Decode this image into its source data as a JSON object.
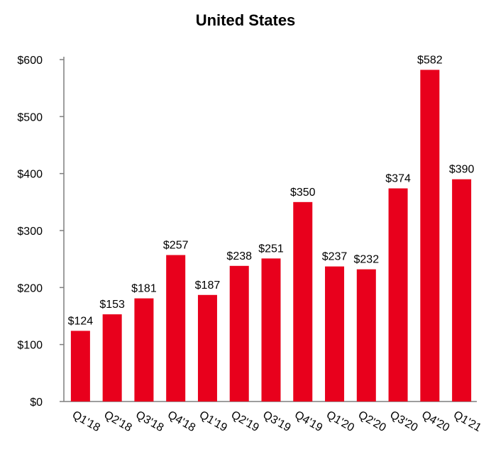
{
  "chart_data": {
    "type": "bar",
    "title": "United States",
    "categories": [
      "Q1'18",
      "Q2'18",
      "Q3'18",
      "Q4'18",
      "Q1'19",
      "Q2'19",
      "Q3'19",
      "Q4'19",
      "Q1'20",
      "Q2'20",
      "Q3'20",
      "Q4'20",
      "Q1'21"
    ],
    "values": [
      124,
      153,
      181,
      257,
      187,
      238,
      251,
      350,
      237,
      232,
      374,
      582,
      390
    ],
    "data_labels": [
      "$124",
      "$153",
      "$181",
      "$257",
      "$187",
      "$238",
      "$251",
      "$350",
      "$237",
      "$232",
      "$374",
      "$582",
      "$390"
    ],
    "yticks": [
      0,
      100,
      200,
      300,
      400,
      500,
      600
    ],
    "ytick_labels": [
      "$0",
      "$100",
      "$200",
      "$300",
      "$400",
      "$500",
      "$600"
    ],
    "ylim": [
      0,
      600
    ],
    "xlabel": "",
    "ylabel": "",
    "grid": false,
    "bar_color": "#e8001c"
  }
}
